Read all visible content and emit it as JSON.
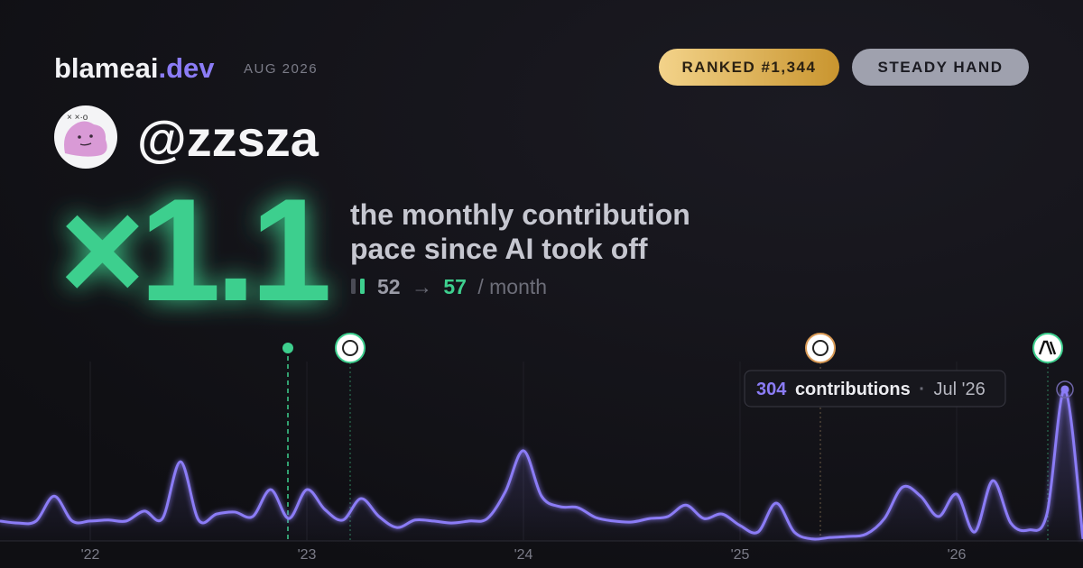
{
  "brand": {
    "name": "blameai",
    "tld": ".dev",
    "period": "AUG 2026"
  },
  "badges": [
    "RANKED #1,344",
    "STEADY HAND"
  ],
  "user": {
    "handle": "@zzsza"
  },
  "headline": {
    "multiplier": "×1.1",
    "line1": "the monthly contribution",
    "line2": "pace since AI took off",
    "before": 52,
    "arrow": "→",
    "after": 57,
    "unit": "/ month"
  },
  "chart_data": {
    "type": "line",
    "categories": [
      null,
      null,
      null,
      null,
      null,
      "'22",
      null,
      null,
      null,
      null,
      null,
      null,
      null,
      null,
      null,
      null,
      null,
      "'23",
      null,
      null,
      null,
      null,
      null,
      null,
      null,
      null,
      null,
      null,
      null,
      "'24",
      null,
      null,
      null,
      null,
      null,
      null,
      null,
      null,
      null,
      null,
      null,
      "'25",
      null,
      null,
      null,
      null,
      null,
      null,
      null,
      null,
      null,
      null,
      null,
      "'26",
      null,
      null,
      null,
      null,
      null,
      null,
      null
    ],
    "values": [
      40,
      36,
      40,
      90,
      40,
      40,
      42,
      40,
      60,
      45,
      159,
      42,
      54,
      58,
      49,
      103,
      45,
      103,
      63,
      42,
      85,
      49,
      27,
      42,
      40,
      36,
      40,
      45,
      99,
      181,
      90,
      69,
      67,
      47,
      40,
      38,
      45,
      49,
      72,
      45,
      54,
      31,
      18,
      76,
      18,
      4,
      7,
      9,
      14,
      45,
      108,
      90,
      49,
      94,
      18,
      121,
      36,
      22,
      54,
      304,
      4
    ],
    "color": "#8b7cf6",
    "ylim": [
      0,
      360
    ],
    "tooltip": {
      "label": "contributions",
      "sep": "·",
      "date": "Jul '26"
    }
  }
}
